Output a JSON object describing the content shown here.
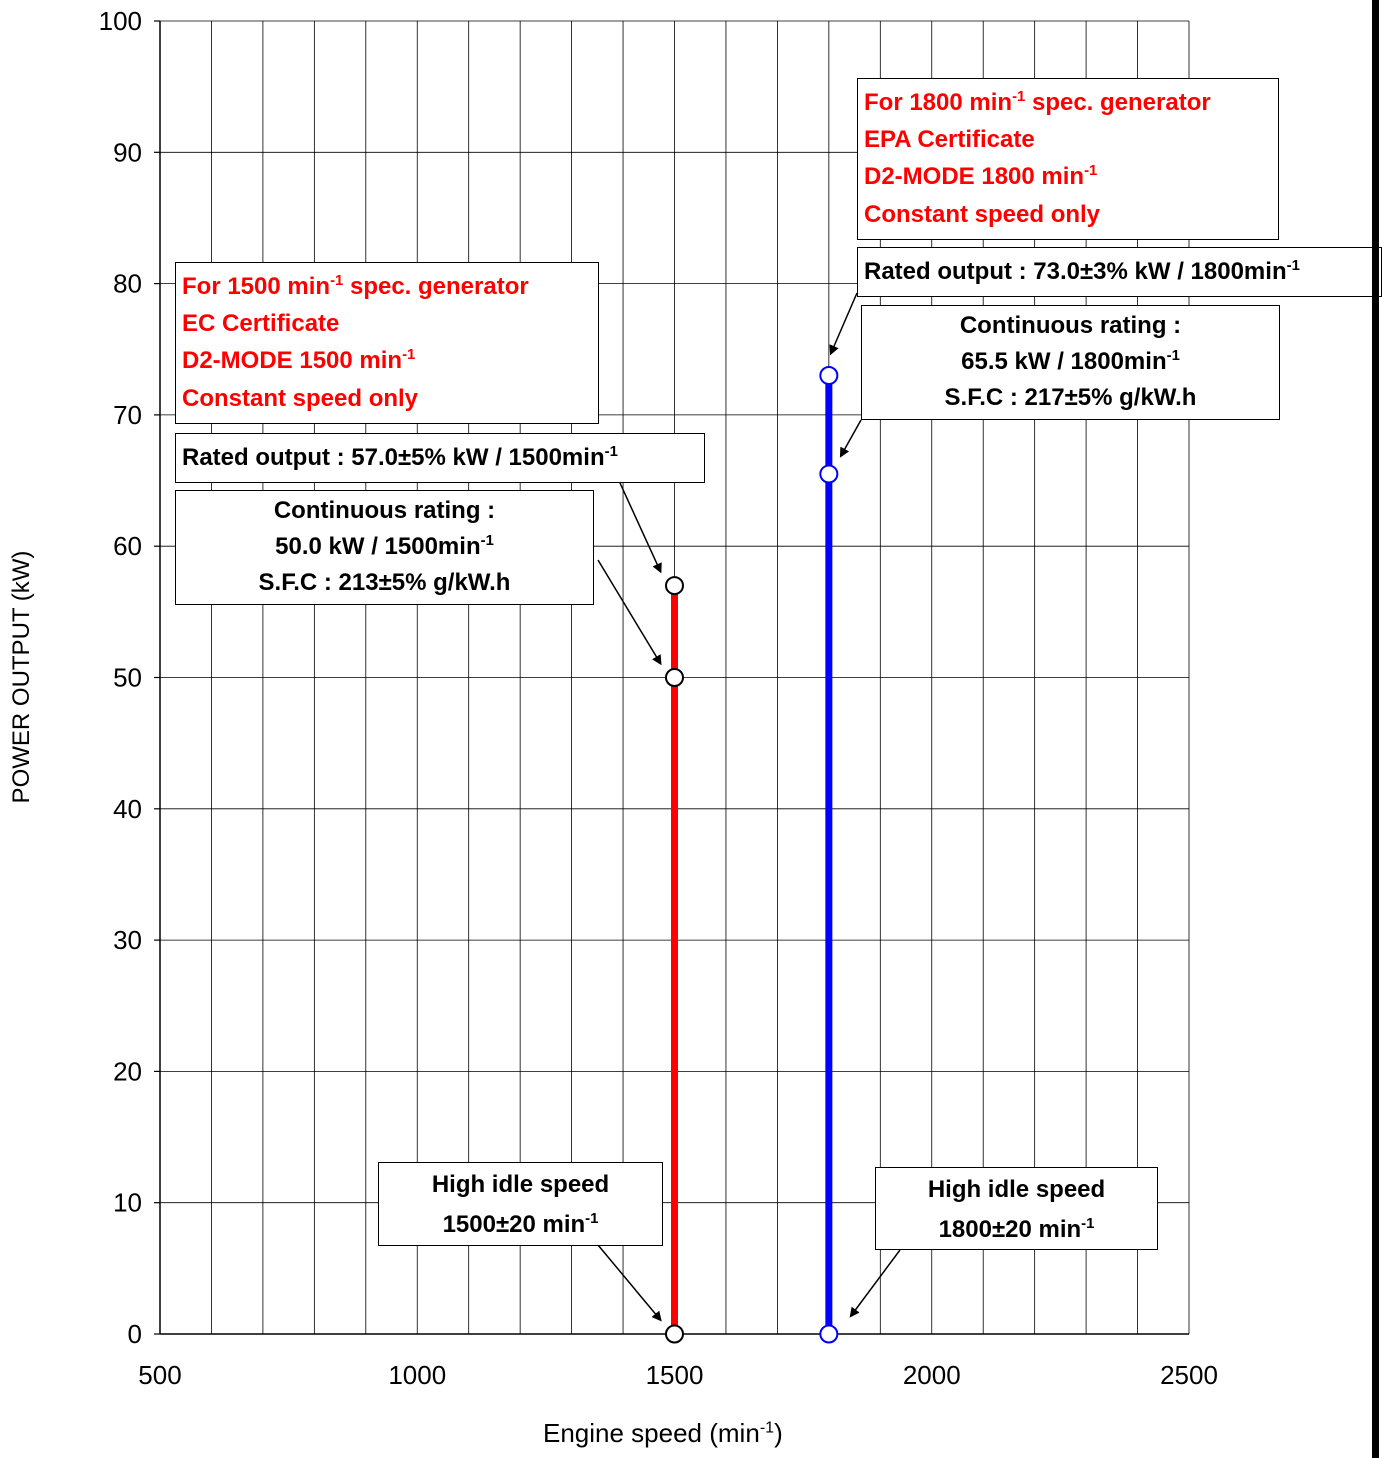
{
  "chart_data": {
    "type": "line",
    "title": "",
    "xlabel": "Engine speed  (min",
    "xlabel_sup": "-1",
    "xlabel_tail": ")",
    "ylabel": "POWER OUTPUT (kW)",
    "xlim": [
      500,
      2500
    ],
    "ylim": [
      0,
      100
    ],
    "x_ticks": [
      500,
      1000,
      1500,
      2000,
      2500
    ],
    "y_ticks": [
      0,
      10,
      20,
      30,
      40,
      50,
      60,
      70,
      80,
      90,
      100
    ],
    "x_minor_step": 100,
    "grid": true,
    "series": [
      {
        "x": [
          1500,
          1500,
          1500
        ],
        "y": [
          0,
          50,
          57
        ],
        "color": "#ff0000",
        "marker_edge": "#000000"
      },
      {
        "x": [
          1800,
          1800,
          1800
        ],
        "y": [
          0,
          65.5,
          73
        ],
        "color": "#0000ff",
        "marker_edge": "#0000ff"
      }
    ],
    "annotations": {
      "spec1500": {
        "line1a": "For 1500 min",
        "line1sup": "-1",
        "line1b": " spec. generator",
        "line2": "EC Certificate",
        "line3a": "D2-MODE 1500 min",
        "line3sup": "-1",
        "line4": "Constant speed only"
      },
      "spec1800": {
        "line1a": "For 1800 min",
        "line1sup": "-1",
        "line1b": " spec. generator",
        "line2": "EPA Certificate",
        "line3a": "D2-MODE 1800 min",
        "line3sup": "-1",
        "line4": "Constant speed only"
      },
      "rated1500": {
        "text": "Rated output : 57.0±5% kW / 1500min",
        "sup": "-1"
      },
      "cont1500": {
        "line1": "Continuous rating :",
        "line2a": "50.0 kW / 1500min",
        "line2sup": "-1",
        "line3": "S.F.C  : 213±5% g/kW.h"
      },
      "rated1800": {
        "text": "Rated output : 73.0±3% kW / 1800min",
        "sup": "-1"
      },
      "cont1800": {
        "line1": "Continuous rating :",
        "line2a": "65.5 kW / 1800min",
        "line2sup": "-1",
        "line3": "S.F.C  : 217±5% g/kW.h"
      },
      "idle1500": {
        "line1": "High idle speed",
        "line2a": "1500±20 min",
        "line2sup": "-1"
      },
      "idle1800": {
        "line1": "High idle speed",
        "line2a": "1800±20 min",
        "line2sup": "-1"
      }
    }
  }
}
